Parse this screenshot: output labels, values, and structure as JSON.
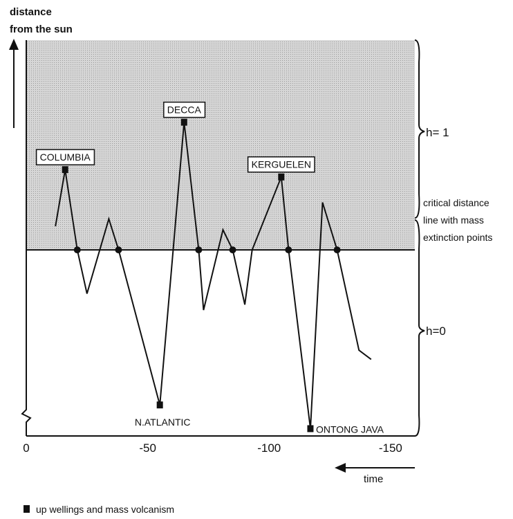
{
  "chart_data": {
    "type": "line",
    "ylabel_line1": "distance",
    "ylabel_line2": "from the sun",
    "xlabel": "time",
    "x_ticks": [
      0,
      -50,
      -100,
      -150
    ],
    "x_tick_labels": [
      "0",
      "-50",
      "-100",
      "-150"
    ],
    "xlim": [
      0,
      -160
    ],
    "ylim": [
      -1.02,
      1.15
    ],
    "shaded_region": "above critical line",
    "critical_line": {
      "y": 0,
      "label_lines": [
        "critical distance",
        "line with mass",
        "extinction points"
      ]
    },
    "regions": [
      {
        "label": "h= 1"
      },
      {
        "label": "h=0"
      }
    ],
    "series": [
      {
        "x": [
          -12,
          -16,
          -21,
          -25,
          -34,
          -38,
          -55,
          -65,
          -71,
          -73,
          -81,
          -85,
          -90,
          -93,
          -105,
          -108,
          -117,
          -122,
          -128,
          -137,
          -142
        ],
        "y": [
          0.13,
          0.44,
          0,
          -0.24,
          0.17,
          0,
          -0.85,
          0.7,
          0,
          -0.33,
          0.11,
          0,
          -0.3,
          0,
          0.4,
          0,
          -0.98,
          0.26,
          0,
          -0.55,
          -0.6
        ]
      }
    ],
    "extinction_points_x": [
      -21,
      -38,
      -71,
      -85,
      -108,
      -128
    ],
    "volcanism_events": [
      {
        "label": "COLUMBIA",
        "x": -16,
        "y": 0.44
      },
      {
        "label": "N.ATLANTIC",
        "x": -55,
        "y": -0.85
      },
      {
        "label": "DECCA",
        "x": -65,
        "y": 0.7
      },
      {
        "label": "KERGUELEN",
        "x": -105,
        "y": 0.4
      },
      {
        "label": "ONTONG JAVA",
        "x": -117,
        "y": -0.98
      }
    ],
    "legend": {
      "label": "up wellings and mass volcanism",
      "placement": "bottom-left"
    },
    "colors": {
      "shade": "#cfcfcf",
      "ink": "#111111"
    }
  }
}
